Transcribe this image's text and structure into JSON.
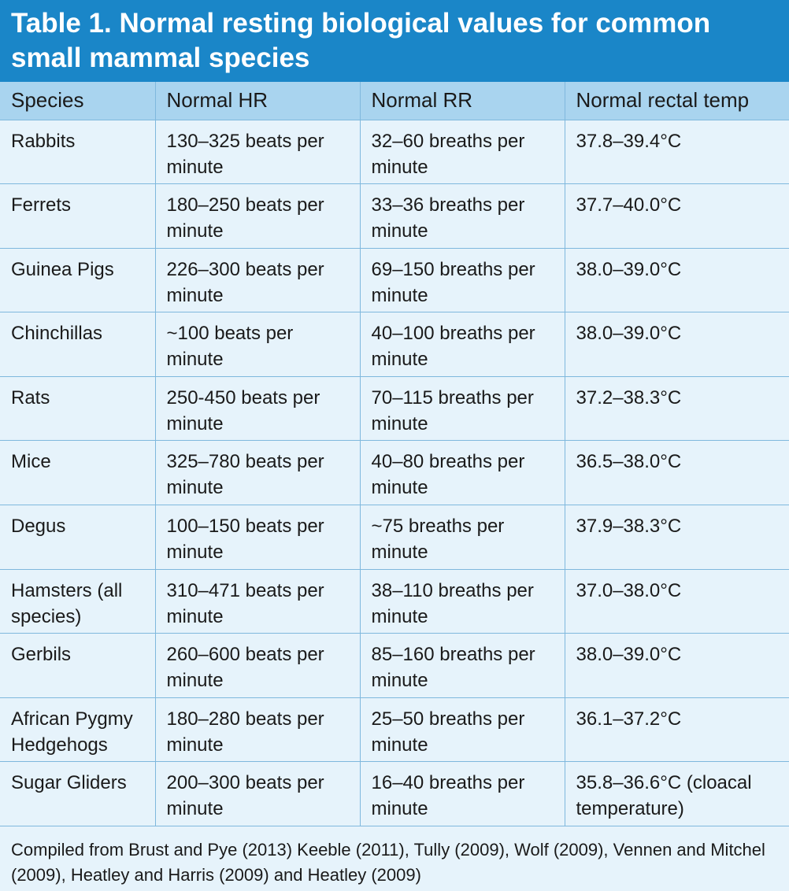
{
  "title": "Table 1. Normal resting biological values for common small mammal species",
  "columns": [
    "Species",
    "Normal HR",
    "Normal RR",
    "Normal rectal temp"
  ],
  "rows": [
    [
      "Rabbits",
      "130–325 beats per minute",
      "32–60 breaths per minute",
      "37.8–39.4°C"
    ],
    [
      "Ferrets",
      "180–250 beats per minute",
      "33–36 breaths per minute",
      "37.7–40.0°C"
    ],
    [
      "Guinea Pigs",
      "226–300 beats per minute",
      "69–150 breaths per minute",
      "38.0–39.0°C"
    ],
    [
      "Chinchillas",
      "~100 beats per minute",
      "40–100 breaths per minute",
      "38.0–39.0°C"
    ],
    [
      "Rats",
      "250-450 beats per minute",
      "70–115 breaths per minute",
      "37.2–38.3°C"
    ],
    [
      "Mice",
      "325–780 beats per minute",
      "40–80 breaths per minute",
      "36.5–38.0°C"
    ],
    [
      "Degus",
      "100–150 beats per minute",
      "~75 breaths per minute",
      "37.9–38.3°C"
    ],
    [
      "Hamsters (all species)",
      "310–471 beats per minute",
      "38–110 breaths per minute",
      "37.0–38.0°C"
    ],
    [
      "Gerbils",
      "260–600 beats per minute",
      "85–160 breaths per minute",
      "38.0–39.0°C"
    ],
    [
      "African Pygmy Hedgehogs",
      "180–280 beats per minute",
      "25–50 breaths per minute",
      "36.1–37.2°C"
    ],
    [
      "Sugar Gliders",
      "200–300 beats per minute",
      "16–40 breaths per minute",
      "35.8–36.6°C (cloacal temperature)"
    ]
  ],
  "footnote": "Compiled from Brust and Pye (2013) Keeble (2011), Tully (2009), Wolf (2009), Vennen and Mitchel (2009), Heatley and Harris (2009) and Heatley (2009)",
  "colors": {
    "title_bg": "#1a86c8",
    "header_bg": "#a9d4ef",
    "body_bg": "#e6f3fb",
    "border": "#7fb8dd"
  }
}
